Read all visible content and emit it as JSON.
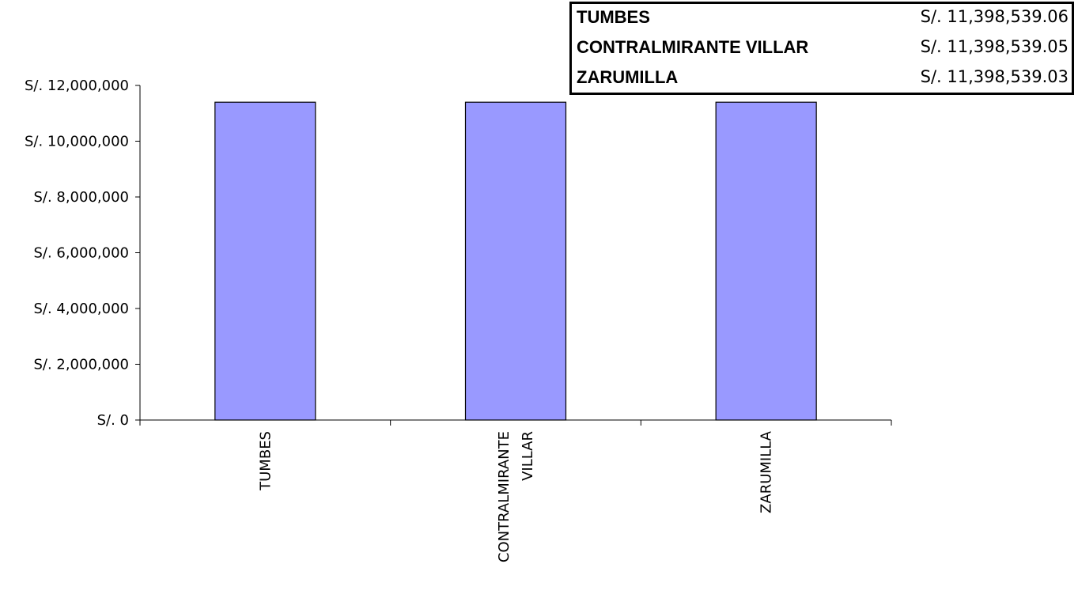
{
  "summary_table": {
    "rows": [
      {
        "name": "TUMBES",
        "value": "S/. 11,398,539.06"
      },
      {
        "name": "CONTRALMIRANTE VILLAR",
        "value": "S/. 11,398,539.05"
      },
      {
        "name": "ZARUMILLA",
        "value": "S/. 11,398,539.03"
      }
    ]
  },
  "chart_data": {
    "type": "bar",
    "title": "",
    "xlabel": "",
    "ylabel": "",
    "categories": [
      "TUMBES",
      "CONTRALMIRANTE VILLAR",
      "ZARUMILLA"
    ],
    "category_label_lines": [
      [
        "TUMBES"
      ],
      [
        "CONTRALMIRANTE",
        "VILLAR"
      ],
      [
        "ZARUMILLA"
      ]
    ],
    "values": [
      11398539.06,
      11398539.05,
      11398539.03
    ],
    "ylim": [
      0,
      12000000
    ],
    "yticks": [
      0,
      2000000,
      4000000,
      6000000,
      8000000,
      10000000,
      12000000
    ],
    "ytick_labels": [
      "S/. 0",
      "S/. 2,000,000",
      "S/. 4,000,000",
      "S/. 6,000,000",
      "S/. 8,000,000",
      "S/. 10,000,000",
      "S/. 12,000,000"
    ],
    "grid": false,
    "bar_color": "#9999ff",
    "bar_edge_color": "#000000"
  }
}
